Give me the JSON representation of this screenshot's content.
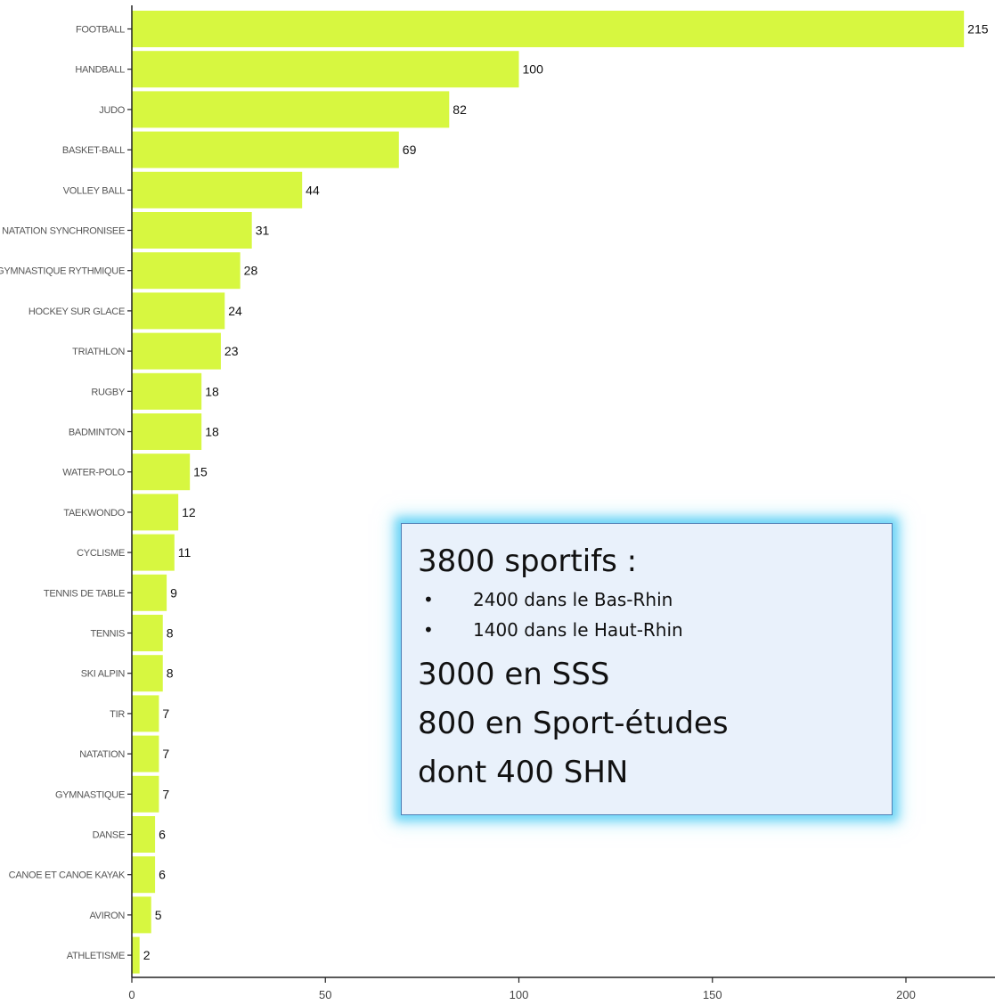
{
  "chart_data": {
    "type": "bar",
    "orientation": "horizontal",
    "categories": [
      "FOOTBALL",
      "HANDBALL",
      "JUDO",
      "BASKET-BALL",
      "VOLLEY BALL",
      "NATATION SYNCHRONISEE",
      "GYMNASTIQUE RYTHMIQUE",
      "HOCKEY SUR GLACE",
      "TRIATHLON",
      "RUGBY",
      "BADMINTON",
      "WATER-POLO",
      "TAEKWONDO",
      "CYCLISME",
      "TENNIS DE TABLE",
      "TENNIS",
      "SKI ALPIN",
      "TIR",
      "NATATION",
      "GYMNASTIQUE",
      "DANSE",
      "CANOE ET CANOE KAYAK",
      "AVIRON",
      "ATHLETISME"
    ],
    "values": [
      215,
      100,
      82,
      69,
      44,
      31,
      28,
      24,
      23,
      18,
      18,
      15,
      12,
      11,
      9,
      8,
      8,
      7,
      7,
      7,
      6,
      6,
      5,
      2
    ],
    "value_labels": [
      "215",
      "100",
      "82",
      "69",
      "44",
      "31",
      "28",
      "24",
      "23",
      "18",
      "18",
      "15",
      "12",
      "11",
      "9",
      "8",
      "8",
      "7",
      "7",
      "7",
      "6",
      "6",
      "5",
      "2"
    ],
    "xlim": [
      0,
      220
    ],
    "xticks": [
      0,
      50,
      100,
      150,
      200
    ],
    "xtick_labels": [
      "0",
      "50",
      "100",
      "150",
      "200"
    ],
    "bar_color": "#d7f740",
    "grid": false,
    "title": "",
    "xlabel": "",
    "ylabel": ""
  },
  "info_box": {
    "heading": "3800 sportifs :",
    "bullets": [
      "2400 dans le Bas-Rhin",
      "1400 dans le Haut-Rhin"
    ],
    "bullet_glyph": "•",
    "lines": [
      "3000 en SSS",
      "800 en Sport-études",
      "dont 400 SHN"
    ],
    "background_color": "#e9f1fb",
    "border_color": "#4f7fb5",
    "glow_color": "#64d2f5"
  }
}
